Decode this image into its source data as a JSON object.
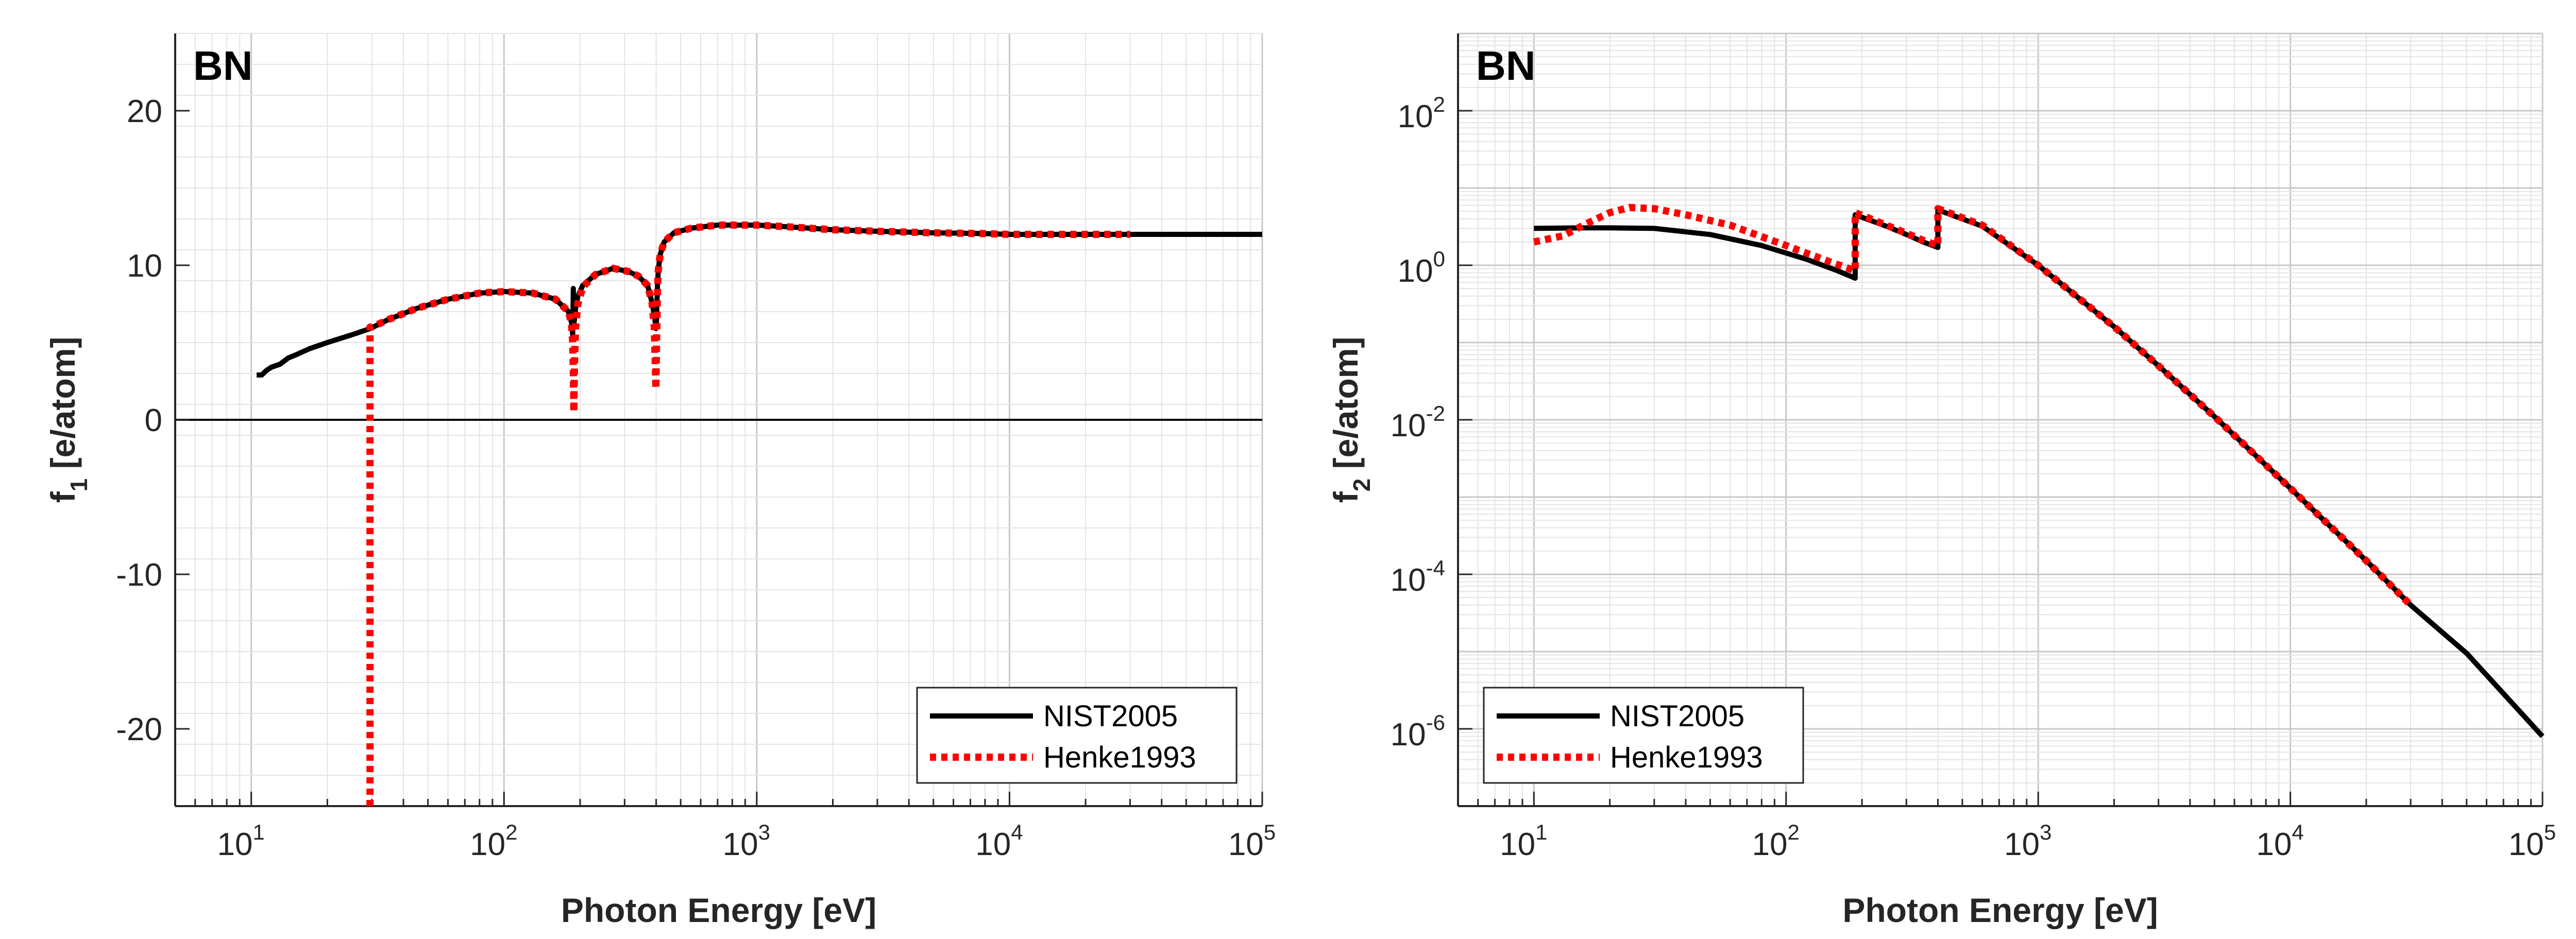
{
  "chart_data": [
    {
      "type": "line",
      "title": "BN",
      "xlabel": "Photon Energy [eV]",
      "ylabel_main": "f",
      "ylabel_sub": "1",
      "ylabel_unit": " [e/atom]",
      "xscale": "log",
      "xlim": [
        5,
        100000
      ],
      "ylim": [
        -25,
        25
      ],
      "yticks": [
        -20,
        -10,
        0,
        10,
        20
      ],
      "ytick_labels": [
        "-20",
        "-10",
        "0",
        "10",
        "20"
      ],
      "xticks": [
        10,
        100,
        1000,
        10000,
        100000
      ],
      "xtick_labels": [
        {
          "base": "10",
          "exp": "1"
        },
        {
          "base": "10",
          "exp": "2"
        },
        {
          "base": "10",
          "exp": "3"
        },
        {
          "base": "10",
          "exp": "4"
        },
        {
          "base": "10",
          "exp": "5"
        }
      ],
      "grid": true,
      "zero_line": 0,
      "legend_position": "bottom-right",
      "series": [
        {
          "name": "NIST2005",
          "color": "#000000",
          "style": "solid",
          "x": [
            10.5,
            11.0,
            11.5,
            12,
            13,
            14,
            15,
            17,
            20,
            25,
            29.5,
            35,
            45,
            60,
            80,
            100,
            130,
            160,
            180,
            185,
            187,
            188,
            188.5,
            189,
            190,
            192,
            196,
            205,
            230,
            270,
            310,
            340,
            370,
            385,
            395,
            399,
            401,
            403,
            405,
            408,
            415,
            430,
            470,
            550,
            700,
            900,
            1000,
            1300,
            2000,
            3000,
            5000,
            8000,
            10000,
            20000,
            30000,
            50000,
            100000
          ],
          "y": [
            2.9,
            2.9,
            3.2,
            3.4,
            3.6,
            4.0,
            4.2,
            4.6,
            5.0,
            5.5,
            5.9,
            6.5,
            7.2,
            7.8,
            8.2,
            8.3,
            8.2,
            7.8,
            7.0,
            6.3,
            5.5,
            8.5,
            6.6,
            6.2,
            6.5,
            7.2,
            8.0,
            8.7,
            9.4,
            9.8,
            9.6,
            9.3,
            8.7,
            7.6,
            6.6,
            5.9,
            6.4,
            7.6,
            8.8,
            9.7,
            10.7,
            11.5,
            12.1,
            12.4,
            12.6,
            12.6,
            12.6,
            12.5,
            12.3,
            12.2,
            12.1,
            12.05,
            12.0,
            12.0,
            12.0,
            12.0,
            12.0
          ]
        },
        {
          "name": "Henke1993",
          "color": "#ff0000",
          "style": "dotted",
          "x": [
            29.5,
            29.5,
            30,
            35,
            45,
            60,
            80,
            100,
            130,
            160,
            180,
            185,
            187,
            188,
            189,
            190,
            192,
            196,
            205,
            230,
            270,
            310,
            340,
            370,
            385,
            393,
            399,
            401,
            403,
            405,
            408,
            415,
            430,
            470,
            550,
            700,
            900,
            1000,
            1300,
            2000,
            3000,
            5000,
            8000,
            10000,
            20000,
            30000
          ],
          "y": [
            -25,
            6.0,
            6.0,
            6.5,
            7.2,
            7.8,
            8.2,
            8.3,
            8.2,
            7.8,
            7.0,
            6.2,
            5.0,
            3.0,
            0.5,
            3.5,
            6.0,
            7.5,
            8.6,
            9.4,
            9.8,
            9.6,
            9.3,
            8.7,
            7.6,
            6.0,
            2.0,
            4.5,
            6.5,
            8.5,
            9.7,
            10.7,
            11.5,
            12.1,
            12.4,
            12.6,
            12.6,
            12.6,
            12.5,
            12.3,
            12.2,
            12.1,
            12.05,
            12.0,
            12.0,
            12.0
          ]
        }
      ]
    },
    {
      "type": "line",
      "title": "BN",
      "xlabel": "Photon Energy [eV]",
      "ylabel_main": "f",
      "ylabel_sub": "2",
      "ylabel_unit": " [e/atom]",
      "xscale": "log",
      "yscale": "log",
      "xlim": [
        5,
        100000
      ],
      "ylim": [
        1e-07,
        1000
      ],
      "yticks": [
        1e-06,
        0.0001,
        0.01,
        1,
        100
      ],
      "ytick_labels": [
        {
          "base": "10",
          "exp": "-6"
        },
        {
          "base": "10",
          "exp": "-4"
        },
        {
          "base": "10",
          "exp": "-2"
        },
        {
          "base": "10",
          "exp": "0"
        },
        {
          "base": "10",
          "exp": "2"
        }
      ],
      "xticks": [
        10,
        100,
        1000,
        10000,
        100000
      ],
      "xtick_labels": [
        {
          "base": "10",
          "exp": "1"
        },
        {
          "base": "10",
          "exp": "2"
        },
        {
          "base": "10",
          "exp": "3"
        },
        {
          "base": "10",
          "exp": "4"
        },
        {
          "base": "10",
          "exp": "5"
        }
      ],
      "grid": true,
      "legend_position": "bottom-left",
      "series": [
        {
          "name": "NIST2005",
          "color": "#000000",
          "style": "solid",
          "x": [
            10,
            15,
            20,
            30,
            50,
            80,
            120,
            160,
            188,
            188.01,
            250,
            300,
            350,
            400,
            400.01,
            600,
            1000,
            2000,
            3000,
            5000,
            10000,
            20000,
            30000,
            50000,
            100000
          ],
          "y": [
            3.0,
            3.05,
            3.05,
            3.0,
            2.5,
            1.8,
            1.2,
            0.85,
            0.68,
            4.5,
            3.2,
            2.5,
            2.0,
            1.7,
            5.2,
            3.2,
            1.0,
            0.16,
            0.05,
            0.011,
            0.0013,
            0.00015,
            4e-05,
            9.5e-06,
            8e-07
          ]
        },
        {
          "name": "Henke1993",
          "color": "#ff0000",
          "style": "dotted",
          "x": [
            10,
            13,
            16,
            20,
            24,
            30,
            40,
            60,
            100,
            150,
            188,
            188.01,
            250,
            300,
            350,
            400,
            400.01,
            600,
            1000,
            2000,
            3000,
            5000,
            10000,
            20000,
            30000
          ],
          "y": [
            2.0,
            2.4,
            3.4,
            4.8,
            5.6,
            5.4,
            4.5,
            3.3,
            1.8,
            1.1,
            0.85,
            4.8,
            3.3,
            2.6,
            2.1,
            1.8,
            5.4,
            3.3,
            1.0,
            0.16,
            0.05,
            0.011,
            0.0013,
            0.00015,
            4e-05
          ]
        }
      ]
    }
  ]
}
